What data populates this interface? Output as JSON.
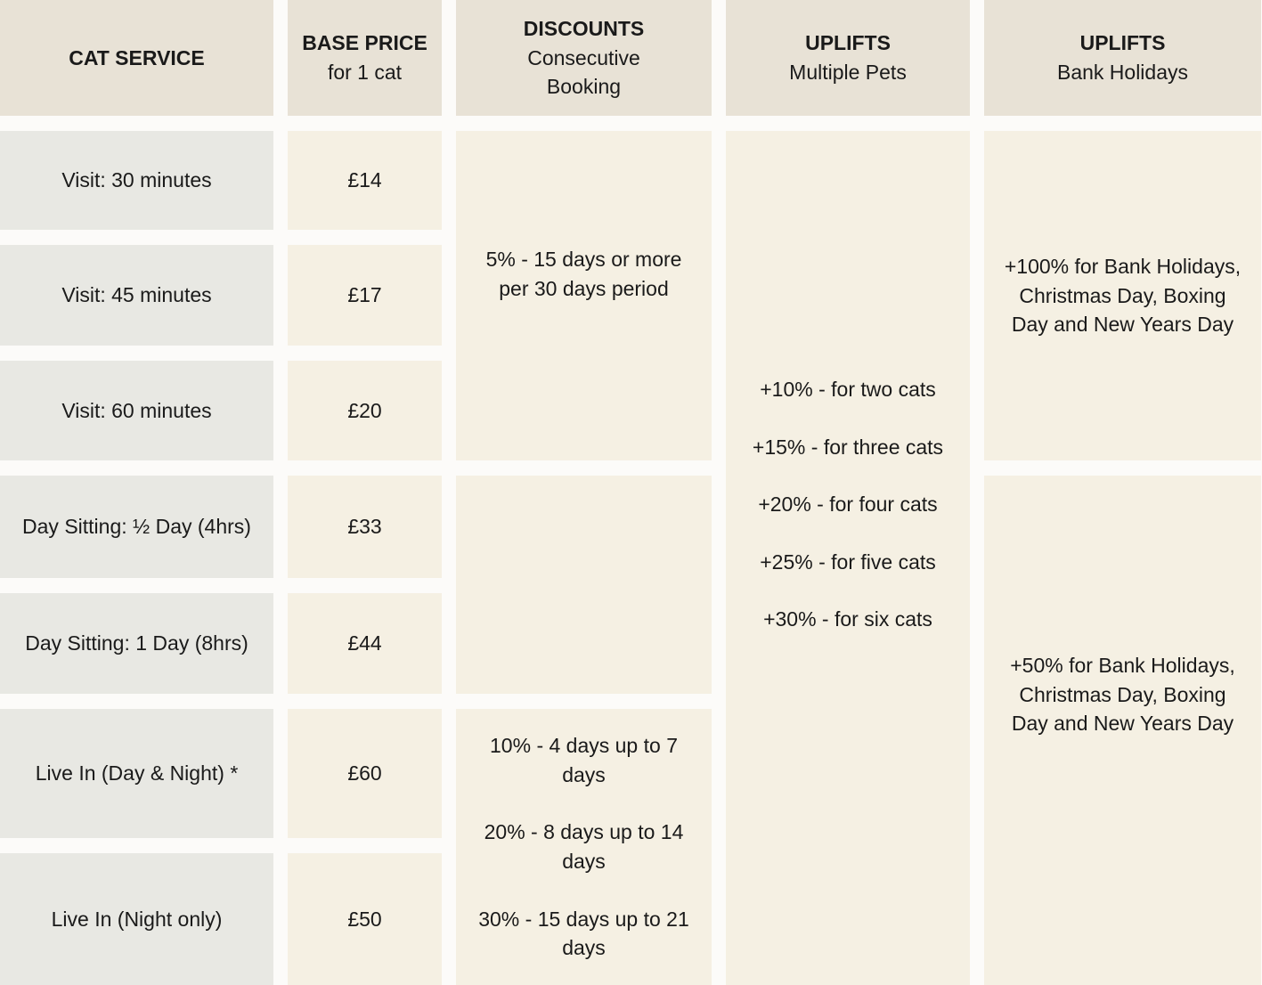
{
  "headers": [
    {
      "title": "CAT SERVICE",
      "subtitle": ""
    },
    {
      "title": "BASE PRICE",
      "subtitle": "for 1 cat"
    },
    {
      "title": "DISCOUNTS",
      "subtitle": "Consecutive\nBooking"
    },
    {
      "title": "UPLIFTS",
      "subtitle": "Multiple Pets"
    },
    {
      "title": "UPLIFTS",
      "subtitle": "Bank Holidays"
    }
  ],
  "services": [
    {
      "name": "Visit: 30 minutes",
      "price": "£14"
    },
    {
      "name": "Visit: 45 minutes",
      "price": "£17"
    },
    {
      "name": "Visit: 60 minutes",
      "price": "£20"
    },
    {
      "name": "Day Sitting: ½ Day (4hrs)",
      "price": "£33"
    },
    {
      "name": "Day Sitting: 1 Day (8hrs)",
      "price": "£44"
    },
    {
      "name": "Live In (Day & Night) *",
      "price": "£60"
    },
    {
      "name": "Live In (Night only)",
      "price": "£50"
    }
  ],
  "discounts": {
    "visits": "5% - 15 days or more\nper 30 days period",
    "day_sitting": "",
    "live_in": [
      "10% - 4 days up to 7\ndays",
      "20% - 8 days up to 14\ndays",
      "30% - 15 days up to 21\ndays"
    ]
  },
  "multiple_pets": [
    "+10% - for two cats",
    "+15% - for three cats",
    "+20% - for four cats",
    "+25% - for five cats",
    "+30% - for six cats"
  ],
  "bank_holidays": {
    "visits": "+100% for Bank Holidays,\nChristmas Day, Boxing\nDay and New Years Day",
    "sitting_live_in": "+50% for Bank Holidays,\nChristmas Day, Boxing\nDay and New Years Day"
  }
}
